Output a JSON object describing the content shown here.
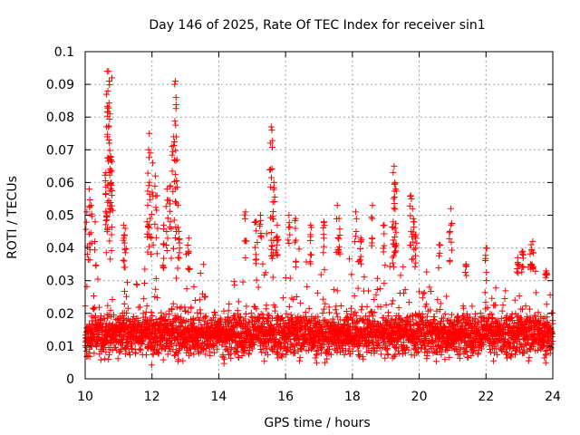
{
  "chart_data": {
    "type": "scatter",
    "title": "Day 146 of 2025, Rate Of TEC Index for receiver sin1",
    "xlabel": "GPS time / hours",
    "ylabel": "ROTI / TECUs",
    "xlim": [
      10,
      24
    ],
    "ylim": [
      0,
      0.1
    ],
    "x_ticks": [
      10,
      12,
      14,
      16,
      18,
      20,
      22,
      24
    ],
    "x_tick_labels": [
      "10",
      "12",
      "14",
      "16",
      "18",
      "20",
      "22",
      "24"
    ],
    "y_ticks": [
      0,
      0.01,
      0.02,
      0.03,
      0.04,
      0.05,
      0.06,
      0.07,
      0.08,
      0.09,
      0.1
    ],
    "y_tick_labels": [
      "0",
      "0.01",
      "0.02",
      "0.03",
      "0.04",
      "0.05",
      "0.06",
      "0.07",
      "0.08",
      "0.09",
      "0.1"
    ],
    "grid": true,
    "marker": "+",
    "point_color": "#ff0000",
    "baseline": {
      "median": 0.0135,
      "spread": 0.0045,
      "min": 0.004,
      "max": 0.035
    },
    "envelope": [
      {
        "x": 10.0,
        "y": 0.04
      },
      {
        "x": 10.2,
        "y": 0.05
      },
      {
        "x": 10.5,
        "y": 0.04
      },
      {
        "x": 11.0,
        "y": 0.035
      },
      {
        "x": 11.5,
        "y": 0.038
      },
      {
        "x": 12.0,
        "y": 0.045
      },
      {
        "x": 12.5,
        "y": 0.04
      },
      {
        "x": 13.0,
        "y": 0.042
      },
      {
        "x": 13.5,
        "y": 0.038
      },
      {
        "x": 14.0,
        "y": 0.035
      },
      {
        "x": 14.5,
        "y": 0.045
      },
      {
        "x": 15.0,
        "y": 0.045
      },
      {
        "x": 15.5,
        "y": 0.05
      },
      {
        "x": 16.0,
        "y": 0.046
      },
      {
        "x": 16.5,
        "y": 0.042
      },
      {
        "x": 17.0,
        "y": 0.04
      },
      {
        "x": 17.5,
        "y": 0.043
      },
      {
        "x": 18.0,
        "y": 0.04
      },
      {
        "x": 18.5,
        "y": 0.042
      },
      {
        "x": 19.0,
        "y": 0.036
      },
      {
        "x": 19.5,
        "y": 0.04
      },
      {
        "x": 20.0,
        "y": 0.038
      },
      {
        "x": 20.5,
        "y": 0.035
      },
      {
        "x": 21.0,
        "y": 0.03
      },
      {
        "x": 21.5,
        "y": 0.03
      },
      {
        "x": 22.0,
        "y": 0.033
      },
      {
        "x": 22.5,
        "y": 0.028
      },
      {
        "x": 23.0,
        "y": 0.035
      },
      {
        "x": 23.5,
        "y": 0.038
      },
      {
        "x": 24.0,
        "y": 0.03
      }
    ],
    "spikes": [
      {
        "x": 10.05,
        "y": 0.051
      },
      {
        "x": 10.12,
        "y": 0.058
      },
      {
        "x": 10.18,
        "y": 0.053
      },
      {
        "x": 10.3,
        "y": 0.048
      },
      {
        "x": 10.62,
        "y": 0.063
      },
      {
        "x": 10.64,
        "y": 0.077
      },
      {
        "x": 10.66,
        "y": 0.094
      },
      {
        "x": 10.68,
        "y": 0.088
      },
      {
        "x": 10.7,
        "y": 0.094
      },
      {
        "x": 10.72,
        "y": 0.091
      },
      {
        "x": 10.74,
        "y": 0.081
      },
      {
        "x": 10.76,
        "y": 0.068
      },
      {
        "x": 10.78,
        "y": 0.06
      },
      {
        "x": 10.8,
        "y": 0.092
      },
      {
        "x": 11.15,
        "y": 0.047
      },
      {
        "x": 11.2,
        "y": 0.046
      },
      {
        "x": 11.85,
        "y": 0.048
      },
      {
        "x": 11.9,
        "y": 0.07
      },
      {
        "x": 11.92,
        "y": 0.075
      },
      {
        "x": 11.95,
        "y": 0.069
      },
      {
        "x": 12.02,
        "y": 0.066
      },
      {
        "x": 12.1,
        "y": 0.062
      },
      {
        "x": 12.15,
        "y": 0.056
      },
      {
        "x": 12.35,
        "y": 0.047
      },
      {
        "x": 12.45,
        "y": 0.058
      },
      {
        "x": 12.55,
        "y": 0.059
      },
      {
        "x": 12.6,
        "y": 0.071
      },
      {
        "x": 12.65,
        "y": 0.074
      },
      {
        "x": 12.68,
        "y": 0.09
      },
      {
        "x": 12.7,
        "y": 0.091
      },
      {
        "x": 12.72,
        "y": 0.086
      },
      {
        "x": 12.75,
        "y": 0.067
      },
      {
        "x": 12.8,
        "y": 0.045
      },
      {
        "x": 13.1,
        "y": 0.043
      },
      {
        "x": 14.8,
        "y": 0.051
      },
      {
        "x": 15.1,
        "y": 0.048
      },
      {
        "x": 15.25,
        "y": 0.05
      },
      {
        "x": 15.55,
        "y": 0.064
      },
      {
        "x": 15.57,
        "y": 0.077
      },
      {
        "x": 15.59,
        "y": 0.076
      },
      {
        "x": 15.62,
        "y": 0.054
      },
      {
        "x": 15.65,
        "y": 0.06
      },
      {
        "x": 15.75,
        "y": 0.047
      },
      {
        "x": 16.1,
        "y": 0.05
      },
      {
        "x": 16.3,
        "y": 0.049
      },
      {
        "x": 16.75,
        "y": 0.047
      },
      {
        "x": 17.15,
        "y": 0.048
      },
      {
        "x": 17.55,
        "y": 0.053
      },
      {
        "x": 17.6,
        "y": 0.049
      },
      {
        "x": 18.1,
        "y": 0.051
      },
      {
        "x": 18.25,
        "y": 0.043
      },
      {
        "x": 18.6,
        "y": 0.053
      },
      {
        "x": 18.95,
        "y": 0.047
      },
      {
        "x": 19.25,
        "y": 0.065
      },
      {
        "x": 19.27,
        "y": 0.06
      },
      {
        "x": 19.3,
        "y": 0.058
      },
      {
        "x": 19.22,
        "y": 0.048
      },
      {
        "x": 19.75,
        "y": 0.056
      },
      {
        "x": 19.8,
        "y": 0.052
      },
      {
        "x": 19.85,
        "y": 0.048
      },
      {
        "x": 19.9,
        "y": 0.044
      },
      {
        "x": 20.6,
        "y": 0.041
      },
      {
        "x": 20.95,
        "y": 0.052
      },
      {
        "x": 20.92,
        "y": 0.045
      },
      {
        "x": 21.4,
        "y": 0.035
      },
      {
        "x": 22.0,
        "y": 0.04
      },
      {
        "x": 22.95,
        "y": 0.037
      },
      {
        "x": 23.1,
        "y": 0.039
      },
      {
        "x": 23.35,
        "y": 0.041
      },
      {
        "x": 23.4,
        "y": 0.042
      },
      {
        "x": 23.8,
        "y": 0.033
      }
    ]
  }
}
